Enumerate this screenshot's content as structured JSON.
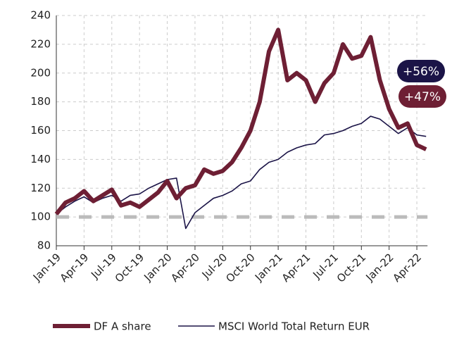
{
  "chart_data": {
    "type": "line",
    "categories": [
      "Jan-19",
      null,
      null,
      "Apr-19",
      null,
      null,
      "Jul-19",
      null,
      null,
      "Oct-19",
      null,
      null,
      "Jan-20",
      null,
      null,
      "Apr-20",
      null,
      null,
      "Jul-20",
      null,
      null,
      "Oct-20",
      null,
      null,
      "Jan-21",
      null,
      null,
      "Apr-21",
      null,
      null,
      "Jul-21",
      null,
      null,
      "Oct-21",
      null,
      null,
      "Jan-22",
      null,
      null,
      "Apr-22",
      null
    ],
    "series": [
      {
        "name": "DF A share",
        "color": "#6e1f34",
        "values": [
          102,
          110,
          113,
          118,
          111,
          115,
          119,
          108,
          110,
          107,
          112,
          117,
          125,
          113,
          120,
          122,
          133,
          130,
          132,
          138,
          148,
          160,
          180,
          215,
          230,
          195,
          200,
          195,
          180,
          193,
          200,
          220,
          210,
          212,
          225,
          195,
          175,
          162,
          165,
          150,
          147
        ]
      },
      {
        "name": "MSCI World Total Return EUR",
        "color": "#1b1447",
        "values": [
          102,
          107,
          111,
          114,
          110,
          113,
          115,
          111,
          115,
          116,
          120,
          123,
          126,
          127,
          92,
          103,
          108,
          113,
          115,
          118,
          123,
          125,
          133,
          138,
          140,
          145,
          148,
          150,
          151,
          157,
          158,
          160,
          163,
          165,
          170,
          168,
          163,
          158,
          162,
          157,
          156
        ]
      }
    ],
    "annotations": [
      {
        "text": "+56%",
        "color": "#1b1447"
      },
      {
        "text": "+47%",
        "color": "#6e1f34"
      }
    ],
    "reference_line": {
      "value": 100,
      "color": "#bbbbbb"
    },
    "ylim": [
      80,
      240
    ],
    "yticks": [
      80,
      100,
      120,
      140,
      160,
      180,
      200,
      220,
      240
    ],
    "grid": true
  }
}
